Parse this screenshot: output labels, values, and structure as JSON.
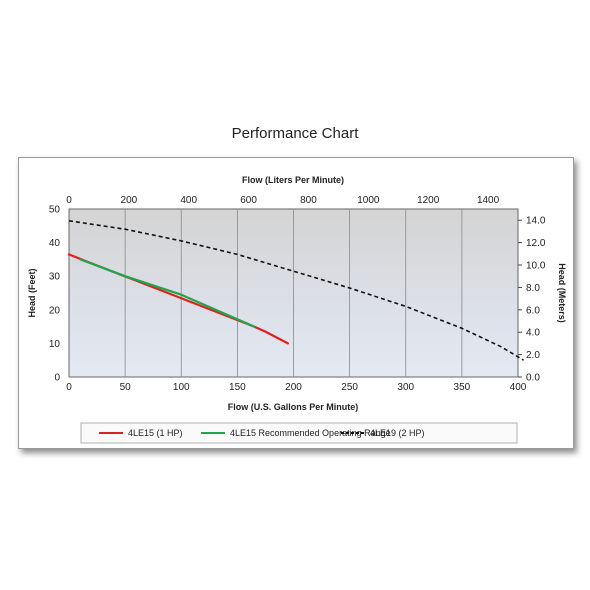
{
  "title": "Performance Chart",
  "chart_data": {
    "type": "line",
    "xlabel": "Flow (U.S. Gallons Per Minute)",
    "x2label": "Flow (Liters Per Minute)",
    "ylabel": "Head (Feet)",
    "y2label": "Head (Meters)",
    "xlim": [
      0,
      400
    ],
    "x2lim": [
      0,
      1500
    ],
    "ylim": [
      0,
      50
    ],
    "y2lim": [
      0,
      15
    ],
    "xticks": [
      0,
      50,
      100,
      150,
      200,
      250,
      300,
      350,
      400
    ],
    "x2ticks": [
      0,
      200,
      400,
      600,
      800,
      1000,
      1200,
      1400
    ],
    "yticks": [
      0,
      10,
      20,
      30,
      40,
      50
    ],
    "y2ticks": [
      "0.0",
      "2.0",
      "4.0",
      "6.0",
      "8.0",
      "10.0",
      "12.0",
      "14.0"
    ],
    "grid": true,
    "legend_position": "bottom",
    "series": [
      {
        "name": "4LE15 (1 HP)",
        "color": "#e0201f",
        "style": "solid",
        "points": [
          [
            0,
            36.5
          ],
          [
            15,
            34.5
          ],
          [
            165,
            15
          ],
          [
            175,
            13.5
          ],
          [
            195,
            10
          ]
        ]
      },
      {
        "name": "4LE15 Recommended Operating Range",
        "color": "#1fa64a",
        "style": "solid",
        "points": [
          [
            10,
            35
          ],
          [
            50,
            30
          ],
          [
            100,
            24.5
          ],
          [
            165,
            15
          ]
        ]
      },
      {
        "name": "4LE19 (2 HP)",
        "color": "#111111",
        "style": "dashed",
        "points": [
          [
            0,
            46.5
          ],
          [
            50,
            44
          ],
          [
            100,
            40.5
          ],
          [
            150,
            36.5
          ],
          [
            200,
            31.5
          ],
          [
            250,
            26.5
          ],
          [
            300,
            21
          ],
          [
            350,
            14.5
          ],
          [
            385,
            9
          ],
          [
            405,
            5
          ]
        ]
      }
    ]
  }
}
